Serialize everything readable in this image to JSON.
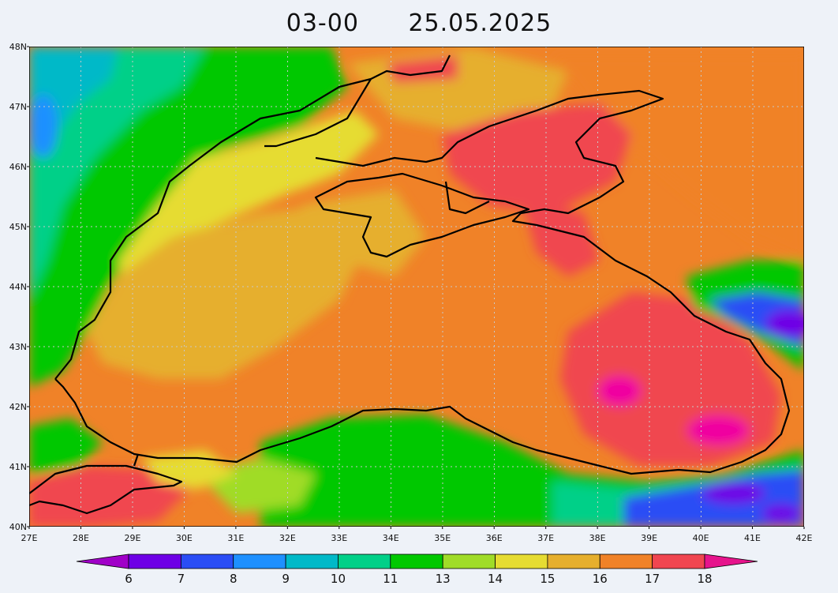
{
  "title": {
    "time": "03-00",
    "date": "25.05.2025"
  },
  "map": {
    "lat_labels": [
      "48N",
      "47N",
      "46N",
      "45N",
      "44N",
      "43N",
      "42N",
      "41N",
      "40N"
    ],
    "lon_labels": [
      "27E",
      "28E",
      "29E",
      "30E",
      "31E",
      "32E",
      "33E",
      "34E",
      "35E",
      "36E",
      "37E",
      "38E",
      "39E",
      "40E",
      "41E",
      "42E"
    ],
    "lat_range": [
      40,
      48
    ],
    "lon_range": [
      27,
      42
    ],
    "grid": true
  },
  "colorbar": {
    "labels": [
      "6",
      "7",
      "8",
      "9",
      "10",
      "11",
      "13",
      "14",
      "15",
      "16",
      "17",
      "18"
    ],
    "colors": [
      "#9a00dc",
      "#6e00e6",
      "#2a4df5",
      "#1e90ff",
      "#00b9c8",
      "#00d088",
      "#00c800",
      "#a0dc28",
      "#e6dc32",
      "#e6af2d",
      "#f08228",
      "#f04650",
      "#f000a0"
    ],
    "low_end_color": "#a000c8",
    "high_end_color": "#e6148c"
  }
}
